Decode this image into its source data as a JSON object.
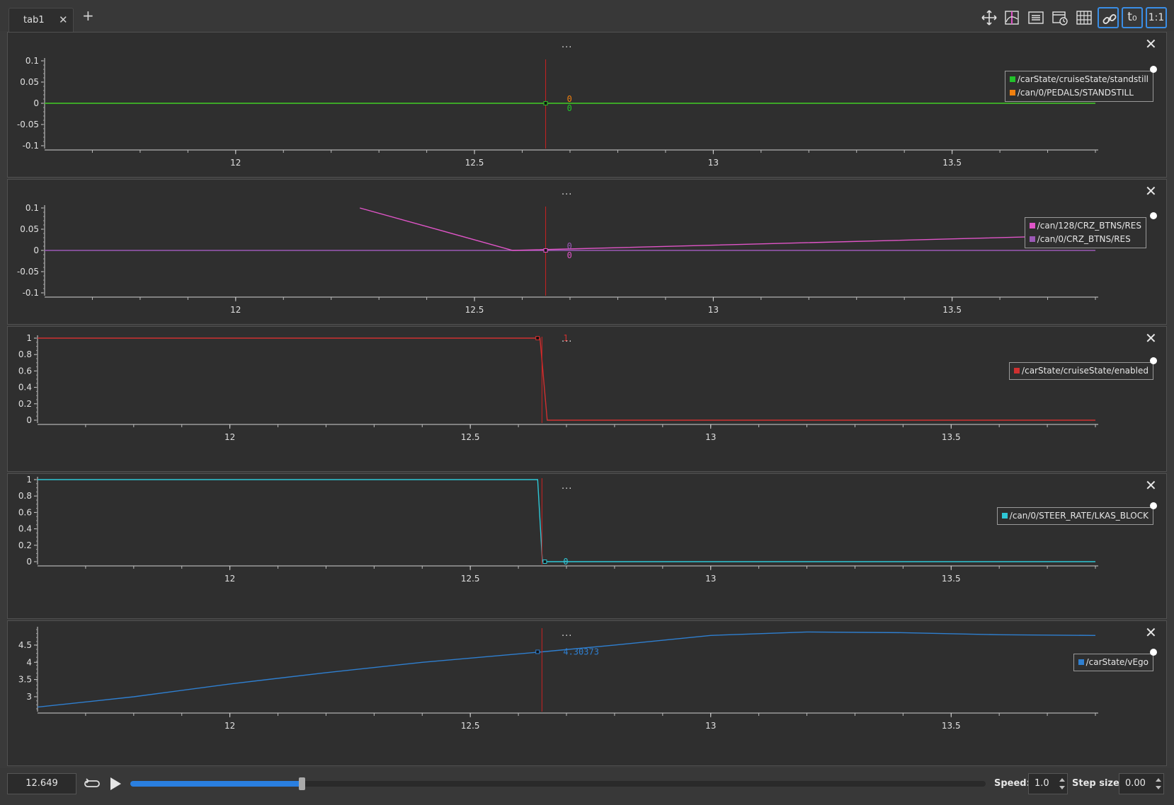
{
  "tabs": [
    {
      "label": "tab1"
    }
  ],
  "toolbar": {
    "t0_label": "t₀",
    "ratio_label": "1:1",
    "icons": [
      "move-icon",
      "split-icon",
      "list-icon",
      "calendar-icon",
      "grid-icon",
      "link-icon",
      "t0-icon",
      "ratio-icon"
    ],
    "active": [
      "link-icon",
      "t0-icon",
      "ratio-icon"
    ]
  },
  "colors": {
    "bg": "#2f2f2f",
    "cursor": "#cc2222",
    "green": "#22c22a",
    "orange": "#f0800f",
    "magenta": "#e055c8",
    "purple": "#9b59b6",
    "red": "#d03030",
    "cyan": "#2ec7d6",
    "blue": "#2f7fd0",
    "accent": "#2a7fe0"
  },
  "panels": [
    {
      "menu": "...",
      "close": "✕",
      "legend": [
        {
          "name": "/carState/cruiseState/standstill",
          "color": "#22c22a"
        },
        {
          "name": "/can/0/PEDALS/STANDSTILL",
          "color": "#f0800f"
        }
      ],
      "y_ticks": [
        "0.1",
        "0.05",
        "0",
        "-0.05",
        "-0.1"
      ],
      "x_ticks": [
        "12",
        "12.5",
        "13",
        "13.5"
      ],
      "values": [
        {
          "text": "0",
          "color": "#f0800f"
        },
        {
          "text": "0",
          "color": "#22c22a"
        }
      ]
    },
    {
      "menu": "...",
      "close": "✕",
      "legend": [
        {
          "name": "/can/128/CRZ_BTNS/RES",
          "color": "#e055c8"
        },
        {
          "name": "/can/0/CRZ_BTNS/RES",
          "color": "#9b59b6"
        }
      ],
      "y_ticks": [
        "0.1",
        "0.05",
        "0",
        "-0.05",
        "-0.1"
      ],
      "x_ticks": [
        "12",
        "12.5",
        "13",
        "13.5"
      ],
      "values": [
        {
          "text": "0",
          "color": "#9b59b6"
        },
        {
          "text": "0",
          "color": "#e055c8"
        }
      ]
    },
    {
      "menu": "...",
      "close": "✕",
      "legend": [
        {
          "name": "/carState/cruiseState/enabled",
          "color": "#d03030"
        }
      ],
      "y_ticks": [
        "1",
        "0.8",
        "0.6",
        "0.4",
        "0.2",
        "0"
      ],
      "x_ticks": [
        "12",
        "12.5",
        "13",
        "13.5"
      ],
      "values": [
        {
          "text": "1",
          "color": "#d03030"
        }
      ]
    },
    {
      "menu": "...",
      "close": "✕",
      "legend": [
        {
          "name": "/can/0/STEER_RATE/LKAS_BLOCK",
          "color": "#2ec7d6"
        }
      ],
      "y_ticks": [
        "1",
        "0.8",
        "0.6",
        "0.4",
        "0.2",
        "0"
      ],
      "x_ticks": [
        "12",
        "12.5",
        "13",
        "13.5"
      ],
      "values": [
        {
          "text": "0",
          "color": "#2ec7d6"
        }
      ]
    },
    {
      "menu": "...",
      "close": "✕",
      "legend": [
        {
          "name": "/carState/vEgo",
          "color": "#2f7fd0"
        }
      ],
      "y_ticks": [
        "4.5",
        "4",
        "3.5",
        "3"
      ],
      "x_ticks": [
        "12",
        "12.5",
        "13",
        "13.5"
      ],
      "values": [
        {
          "text": "4.30373",
          "color": "#2f7fd0"
        }
      ]
    }
  ],
  "chart_data": [
    {
      "type": "line",
      "xlim": [
        11.6,
        13.8
      ],
      "ylim": [
        -0.1,
        0.1
      ],
      "cursor_x": 12.649,
      "series": [
        {
          "name": "/carState/cruiseState/standstill",
          "x": [
            11.6,
            13.8
          ],
          "y": [
            0,
            0
          ]
        },
        {
          "name": "/can/0/PEDALS/STANDSTILL",
          "x": [
            11.6,
            13.8
          ],
          "y": [
            0,
            0
          ]
        }
      ]
    },
    {
      "type": "line",
      "xlim": [
        11.6,
        13.8
      ],
      "ylim": [
        -0.1,
        0.1
      ],
      "cursor_x": 12.649,
      "series": [
        {
          "name": "/can/128/CRZ_BTNS/RES",
          "x": [
            12.26,
            12.58,
            13.8
          ],
          "y": [
            0.1,
            0,
            0.036
          ]
        },
        {
          "name": "/can/0/CRZ_BTNS/RES",
          "x": [
            11.6,
            13.8
          ],
          "y": [
            0,
            0
          ]
        }
      ]
    },
    {
      "type": "line",
      "xlim": [
        11.6,
        13.8
      ],
      "ylim": [
        0,
        1
      ],
      "cursor_x": 12.649,
      "series": [
        {
          "name": "/carState/cruiseState/enabled",
          "x": [
            11.6,
            12.645,
            12.66,
            13.8
          ],
          "y": [
            1,
            1,
            0,
            0
          ]
        }
      ]
    },
    {
      "type": "line",
      "xlim": [
        11.6,
        13.8
      ],
      "ylim": [
        0,
        1
      ],
      "cursor_x": 12.649,
      "series": [
        {
          "name": "/can/0/STEER_RATE/LKAS_BLOCK",
          "x": [
            11.6,
            12.64,
            12.65,
            13.8
          ],
          "y": [
            1,
            1,
            0,
            0
          ]
        }
      ]
    },
    {
      "type": "line",
      "xlim": [
        11.6,
        13.8
      ],
      "ylim": [
        2.65,
        4.95
      ],
      "cursor_x": 12.649,
      "series": [
        {
          "name": "/carState/vEgo",
          "x": [
            11.6,
            11.8,
            12.0,
            12.2,
            12.4,
            12.649,
            12.8,
            13.0,
            13.2,
            13.4,
            13.6,
            13.8
          ],
          "y": [
            2.7,
            3.0,
            3.37,
            3.7,
            4.0,
            4.30373,
            4.5,
            4.78,
            4.88,
            4.86,
            4.8,
            4.78
          ]
        }
      ]
    }
  ],
  "bottom": {
    "time": "12.649",
    "progress": 0.2,
    "speed_label": "Speed:",
    "speed_value": "1.0",
    "step_label": "Step size:",
    "step_value": "0.00"
  }
}
